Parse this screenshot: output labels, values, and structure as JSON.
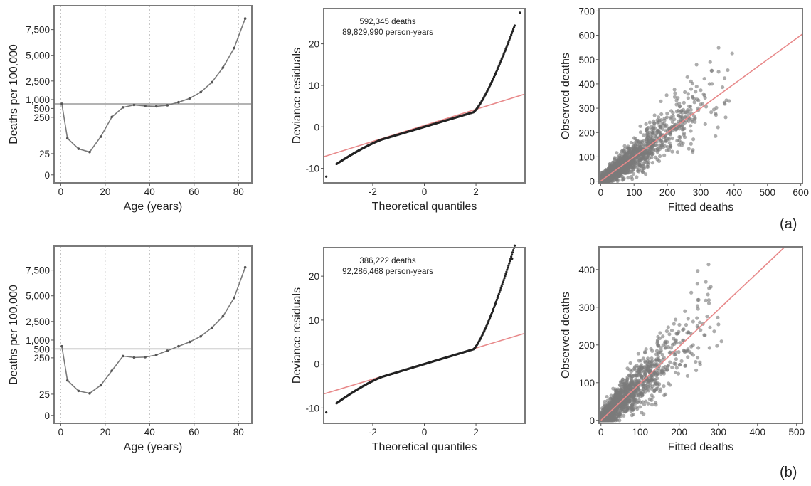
{
  "figure_labels": {
    "a": "(a)",
    "b": "(b)"
  },
  "colors": {
    "frame": "#7a7a7a",
    "grid": "#bcbcbc",
    "hline": "#9a9a9a",
    "curve": "#7a7a7a",
    "qq_points": "#222222",
    "ref_line": "#e8898a",
    "scatter": "#7b7b7b"
  },
  "chart_data": [
    {
      "id": "a-rate",
      "type": "line",
      "row": "a",
      "xlabel": "Age (years)",
      "ylabel": "Deaths per 100,000",
      "xlim": [
        -3,
        86
      ],
      "xticks": [
        0,
        20,
        40,
        60,
        80
      ],
      "ytick_labels": [
        "0",
        "25",
        "250",
        "500",
        "1,000",
        "2,500",
        "5,000",
        "7,500"
      ],
      "ytick_values": [
        0,
        25,
        250,
        500,
        1000,
        2500,
        5000,
        7500
      ],
      "grid": "vertical dotted",
      "reference_y": 760,
      "x": [
        0.5,
        3,
        8,
        13,
        18,
        23,
        28,
        33,
        38,
        43,
        48,
        53,
        58,
        63,
        68,
        73,
        78,
        83
      ],
      "y": [
        760,
        120,
        55,
        35,
        130,
        260,
        560,
        700,
        640,
        620,
        680,
        850,
        1100,
        1600,
        2400,
        3800,
        5700,
        8700
      ]
    },
    {
      "id": "a-qq",
      "type": "scatter",
      "row": "a",
      "xlabel": "Theoretical quantiles",
      "ylabel": "Deviance residuals",
      "xlim": [
        -3.9,
        3.9
      ],
      "ylim": [
        -13.5,
        28.5
      ],
      "xticks": [
        "-2",
        "0",
        "2"
      ],
      "yticks": [
        "-10",
        "0",
        "10",
        "20"
      ],
      "annotation": [
        "592,345 deaths",
        "89,829,990 person-years"
      ],
      "reference_line": [
        [
          -3.9,
          -7.2
        ],
        [
          3.9,
          7.9
        ]
      ]
    },
    {
      "id": "a-fit",
      "type": "scatter",
      "row": "a",
      "xlabel": "Fitted deaths",
      "ylabel": "Observed deaths",
      "xlim": [
        -5,
        605
      ],
      "ylim": [
        -10,
        710
      ],
      "xticks": [
        "0",
        "100",
        "200",
        "300",
        "400",
        "500",
        "600"
      ],
      "yticks": [
        "0",
        "100",
        "200",
        "300",
        "400",
        "500",
        "600",
        "700"
      ],
      "reference_line": [
        [
          0,
          0
        ],
        [
          605,
          605
        ]
      ]
    },
    {
      "id": "b-rate",
      "type": "line",
      "row": "b",
      "xlabel": "Age (years)",
      "ylabel": "Deaths per 100,000",
      "xlim": [
        -3,
        86
      ],
      "xticks": [
        0,
        20,
        40,
        60,
        80
      ],
      "ytick_labels": [
        "0",
        "25",
        "250",
        "500",
        "1,000",
        "2,500",
        "5,000",
        "7,500"
      ],
      "ytick_values": [
        0,
        25,
        250,
        500,
        1000,
        2500,
        5000,
        7500
      ],
      "grid": "vertical dotted",
      "reference_y": 500,
      "x": [
        0.5,
        3,
        8,
        13,
        18,
        23,
        28,
        33,
        38,
        43,
        48,
        53,
        58,
        63,
        68,
        73,
        78,
        83
      ],
      "y": [
        650,
        110,
        45,
        30,
        80,
        170,
        300,
        260,
        270,
        330,
        450,
        650,
        900,
        1300,
        2000,
        3000,
        4800,
        7800
      ]
    },
    {
      "id": "b-qq",
      "type": "scatter",
      "row": "b",
      "xlabel": "Theoretical quantiles",
      "ylabel": "Deviance residuals",
      "xlim": [
        -3.9,
        3.9
      ],
      "ylim": [
        -13.5,
        26.5
      ],
      "xticks": [
        "-2",
        "0",
        "2"
      ],
      "yticks": [
        "-10",
        "0",
        "10",
        "20"
      ],
      "annotation": [
        "386,222 deaths",
        "92,286,468 person-years"
      ],
      "reference_line": [
        [
          -3.9,
          -6.8
        ],
        [
          3.9,
          7.0
        ]
      ]
    },
    {
      "id": "b-fit",
      "type": "scatter",
      "row": "b",
      "xlabel": "Fitted deaths",
      "ylabel": "Observed deaths",
      "xlim": [
        -5,
        515
      ],
      "ylim": [
        -8,
        460
      ],
      "xticks": [
        "0",
        "100",
        "200",
        "300",
        "400",
        "500"
      ],
      "yticks": [
        "0",
        "100",
        "200",
        "300",
        "400"
      ],
      "reference_line": [
        [
          0,
          0
        ],
        [
          470,
          470
        ]
      ]
    }
  ]
}
